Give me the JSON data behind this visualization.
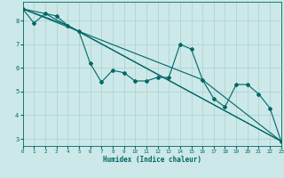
{
  "xlabel": "Humidex (Indice chaleur)",
  "bg_color": "#cce8e8",
  "grid_color": "#aad0d0",
  "line_color": "#006666",
  "marker_color": "#006666",
  "series": [
    [
      0,
      8.5
    ],
    [
      1,
      7.9
    ],
    [
      2,
      8.3
    ],
    [
      3,
      8.2
    ],
    [
      4,
      7.8
    ],
    [
      5,
      7.55
    ],
    [
      6,
      6.2
    ],
    [
      7,
      5.4
    ],
    [
      8,
      5.9
    ],
    [
      9,
      5.8
    ],
    [
      10,
      5.45
    ],
    [
      11,
      5.45
    ],
    [
      12,
      5.6
    ],
    [
      13,
      5.6
    ],
    [
      14,
      7.0
    ],
    [
      15,
      6.8
    ],
    [
      16,
      5.5
    ],
    [
      17,
      4.7
    ],
    [
      18,
      4.35
    ],
    [
      19,
      5.3
    ],
    [
      20,
      5.3
    ],
    [
      21,
      4.9
    ],
    [
      22,
      4.3
    ],
    [
      23,
      2.9
    ]
  ],
  "line2": [
    [
      0,
      8.5
    ],
    [
      2,
      8.3
    ],
    [
      23,
      2.9
    ]
  ],
  "line3": [
    [
      0,
      8.5
    ],
    [
      4,
      7.8
    ],
    [
      23,
      2.9
    ]
  ],
  "line4": [
    [
      0,
      8.5
    ],
    [
      5,
      7.55
    ],
    [
      16,
      5.5
    ],
    [
      23,
      2.9
    ]
  ],
  "xlim": [
    0,
    23
  ],
  "ylim": [
    2.7,
    8.8
  ],
  "yticks": [
    3,
    4,
    5,
    6,
    7,
    8
  ],
  "xticks": [
    0,
    1,
    2,
    3,
    4,
    5,
    6,
    7,
    8,
    9,
    10,
    11,
    12,
    13,
    14,
    15,
    16,
    17,
    18,
    19,
    20,
    21,
    22,
    23
  ]
}
